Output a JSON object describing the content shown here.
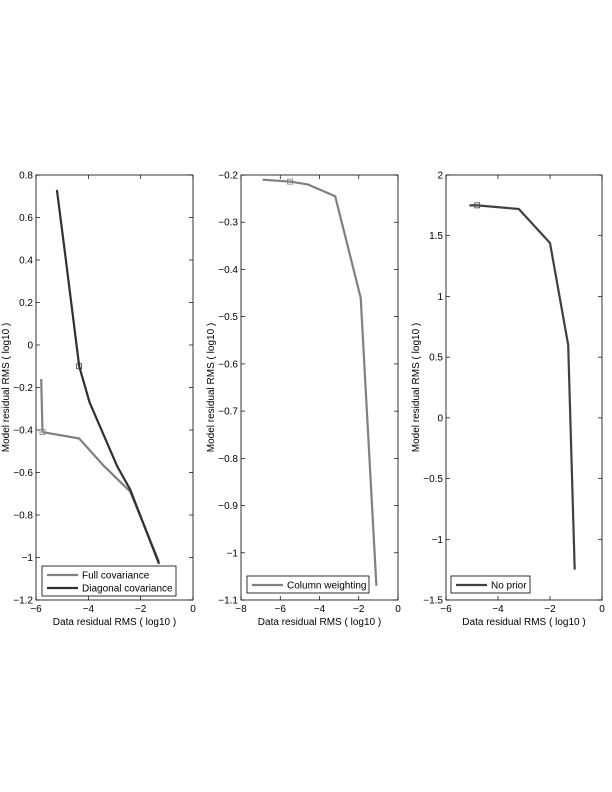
{
  "chart_data": [
    {
      "type": "line",
      "xlabel": "Data residual RMS ( log10 )",
      "ylabel": "Model residual RMS ( log10 )",
      "xlim": [
        -6,
        0
      ],
      "ylim": [
        -1.2,
        0.8
      ],
      "xticks": [
        "−6",
        "−4",
        "−2",
        "0"
      ],
      "yticks": [
        "−1.2",
        "−1",
        "−0.8",
        "−0.6",
        "−0.4",
        "−0.2",
        "0",
        "0.2",
        "0.4",
        "0.6",
        "0.8"
      ],
      "legend_position": "bottom-left",
      "series": [
        {
          "name": "Full covariance",
          "color": "#808080",
          "x": [
            -5.8,
            -5.75,
            -4.35,
            -3.4,
            -2.4,
            -1.3
          ],
          "y": [
            -0.16,
            -0.41,
            -0.44,
            -0.57,
            -0.69,
            -1.02
          ],
          "marker": {
            "x": -5.75,
            "y": -0.41
          }
        },
        {
          "name": "Diagonal covariance",
          "color": "#303030",
          "x": [
            -5.2,
            -4.9,
            -4.35,
            -3.95,
            -2.9,
            -2.4,
            -1.3
          ],
          "y": [
            0.73,
            0.44,
            -0.1,
            -0.27,
            -0.57,
            -0.68,
            -1.03
          ],
          "marker": {
            "x": -4.35,
            "y": -0.1
          }
        }
      ]
    },
    {
      "type": "line",
      "xlabel": "Data residual RMS ( log10 )",
      "ylabel": "Model residual RMS ( log10 )",
      "xlim": [
        -8,
        0
      ],
      "ylim": [
        -1.1,
        -0.2
      ],
      "xticks": [
        "−8",
        "−6",
        "−4",
        "−2",
        "0"
      ],
      "yticks": [
        "−1.1",
        "−1",
        "−0.9",
        "−0.8",
        "−0.7",
        "−0.6",
        "−0.5",
        "−0.4",
        "−0.3",
        "−0.2"
      ],
      "legend_position": "bottom-left",
      "series": [
        {
          "name": "Column weighting",
          "color": "#808080",
          "x": [
            -6.9,
            -5.5,
            -4.6,
            -3.2,
            -1.9,
            -1.1
          ],
          "y": [
            -0.21,
            -0.214,
            -0.22,
            -0.245,
            -0.46,
            -1.07
          ],
          "marker": {
            "x": -5.5,
            "y": -0.214
          }
        }
      ]
    },
    {
      "type": "line",
      "xlabel": "Data residual RMS ( log10 )",
      "ylabel": "Model residual RMS ( log10 )",
      "xlim": [
        -6,
        0
      ],
      "ylim": [
        -1.5,
        2
      ],
      "xticks": [
        "−6",
        "−4",
        "−2",
        "0"
      ],
      "yticks": [
        "−1.5",
        "−1",
        "−0.5",
        "0",
        "0.5",
        "1",
        "1.5",
        "2"
      ],
      "legend_position": "bottom-left",
      "series": [
        {
          "name": "No prior",
          "color": "#404040",
          "x": [
            -5.1,
            -4.8,
            -3.2,
            -2.0,
            -1.3,
            -1.05
          ],
          "y": [
            1.75,
            1.75,
            1.72,
            1.44,
            0.6,
            -1.25
          ],
          "marker": {
            "x": -4.8,
            "y": 1.75
          }
        }
      ]
    }
  ]
}
